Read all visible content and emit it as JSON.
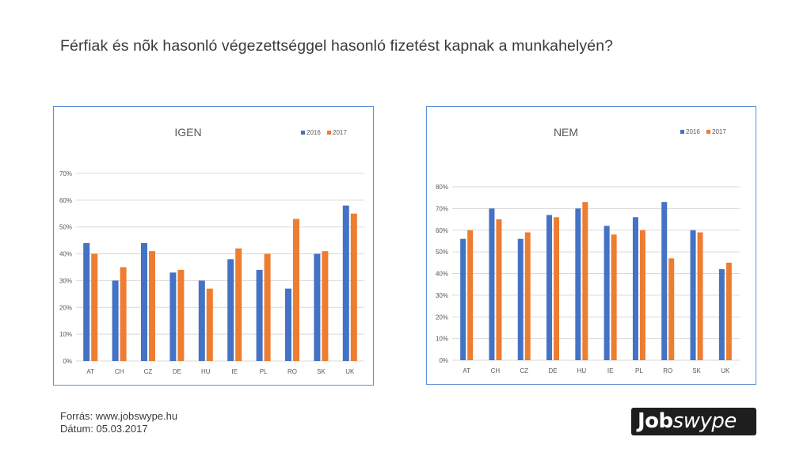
{
  "title": "Férfiak és nõk hasonló végezettséggel hasonló fizetést kapnak a munkahelyén?",
  "footer": {
    "source": "Forrás: www.jobswype.hu",
    "date": "Dátum: 05.03.2017"
  },
  "logo": {
    "part1": "Job",
    "part2": "swype"
  },
  "colors": {
    "series2016": "#4472c4",
    "series2017": "#ed7d31",
    "grid": "#d9d9d9",
    "border": "#5b8fd3"
  },
  "chart_data": [
    {
      "type": "bar",
      "title": "IGEN",
      "categories": [
        "AT",
        "CH",
        "CZ",
        "DE",
        "HU",
        "IE",
        "PL",
        "RO",
        "SK",
        "UK"
      ],
      "series": [
        {
          "name": "2016",
          "values": [
            44,
            30,
            44,
            33,
            30,
            38,
            34,
            27,
            40,
            58
          ]
        },
        {
          "name": "2017",
          "values": [
            40,
            35,
            41,
            34,
            27,
            42,
            40,
            53,
            41,
            55
          ]
        }
      ],
      "yticks": [
        "0%",
        "10%",
        "20%",
        "30%",
        "40%",
        "50%",
        "60%",
        "70%"
      ],
      "ylim": [
        0,
        70
      ],
      "grid": true,
      "legend_position": "top-right"
    },
    {
      "type": "bar",
      "title": "NEM",
      "categories": [
        "AT",
        "CH",
        "CZ",
        "DE",
        "HU",
        "IE",
        "PL",
        "RO",
        "SK",
        "UK"
      ],
      "series": [
        {
          "name": "2016",
          "values": [
            56,
            70,
            56,
            67,
            70,
            62,
            66,
            73,
            60,
            42
          ]
        },
        {
          "name": "2017",
          "values": [
            60,
            65,
            59,
            66,
            73,
            58,
            60,
            47,
            59,
            45
          ]
        }
      ],
      "yticks": [
        "0%",
        "10%",
        "20%",
        "30%",
        "40%",
        "50%",
        "60%",
        "70%",
        "80%"
      ],
      "ylim": [
        0,
        80
      ],
      "grid": true,
      "legend_position": "top-right"
    }
  ]
}
